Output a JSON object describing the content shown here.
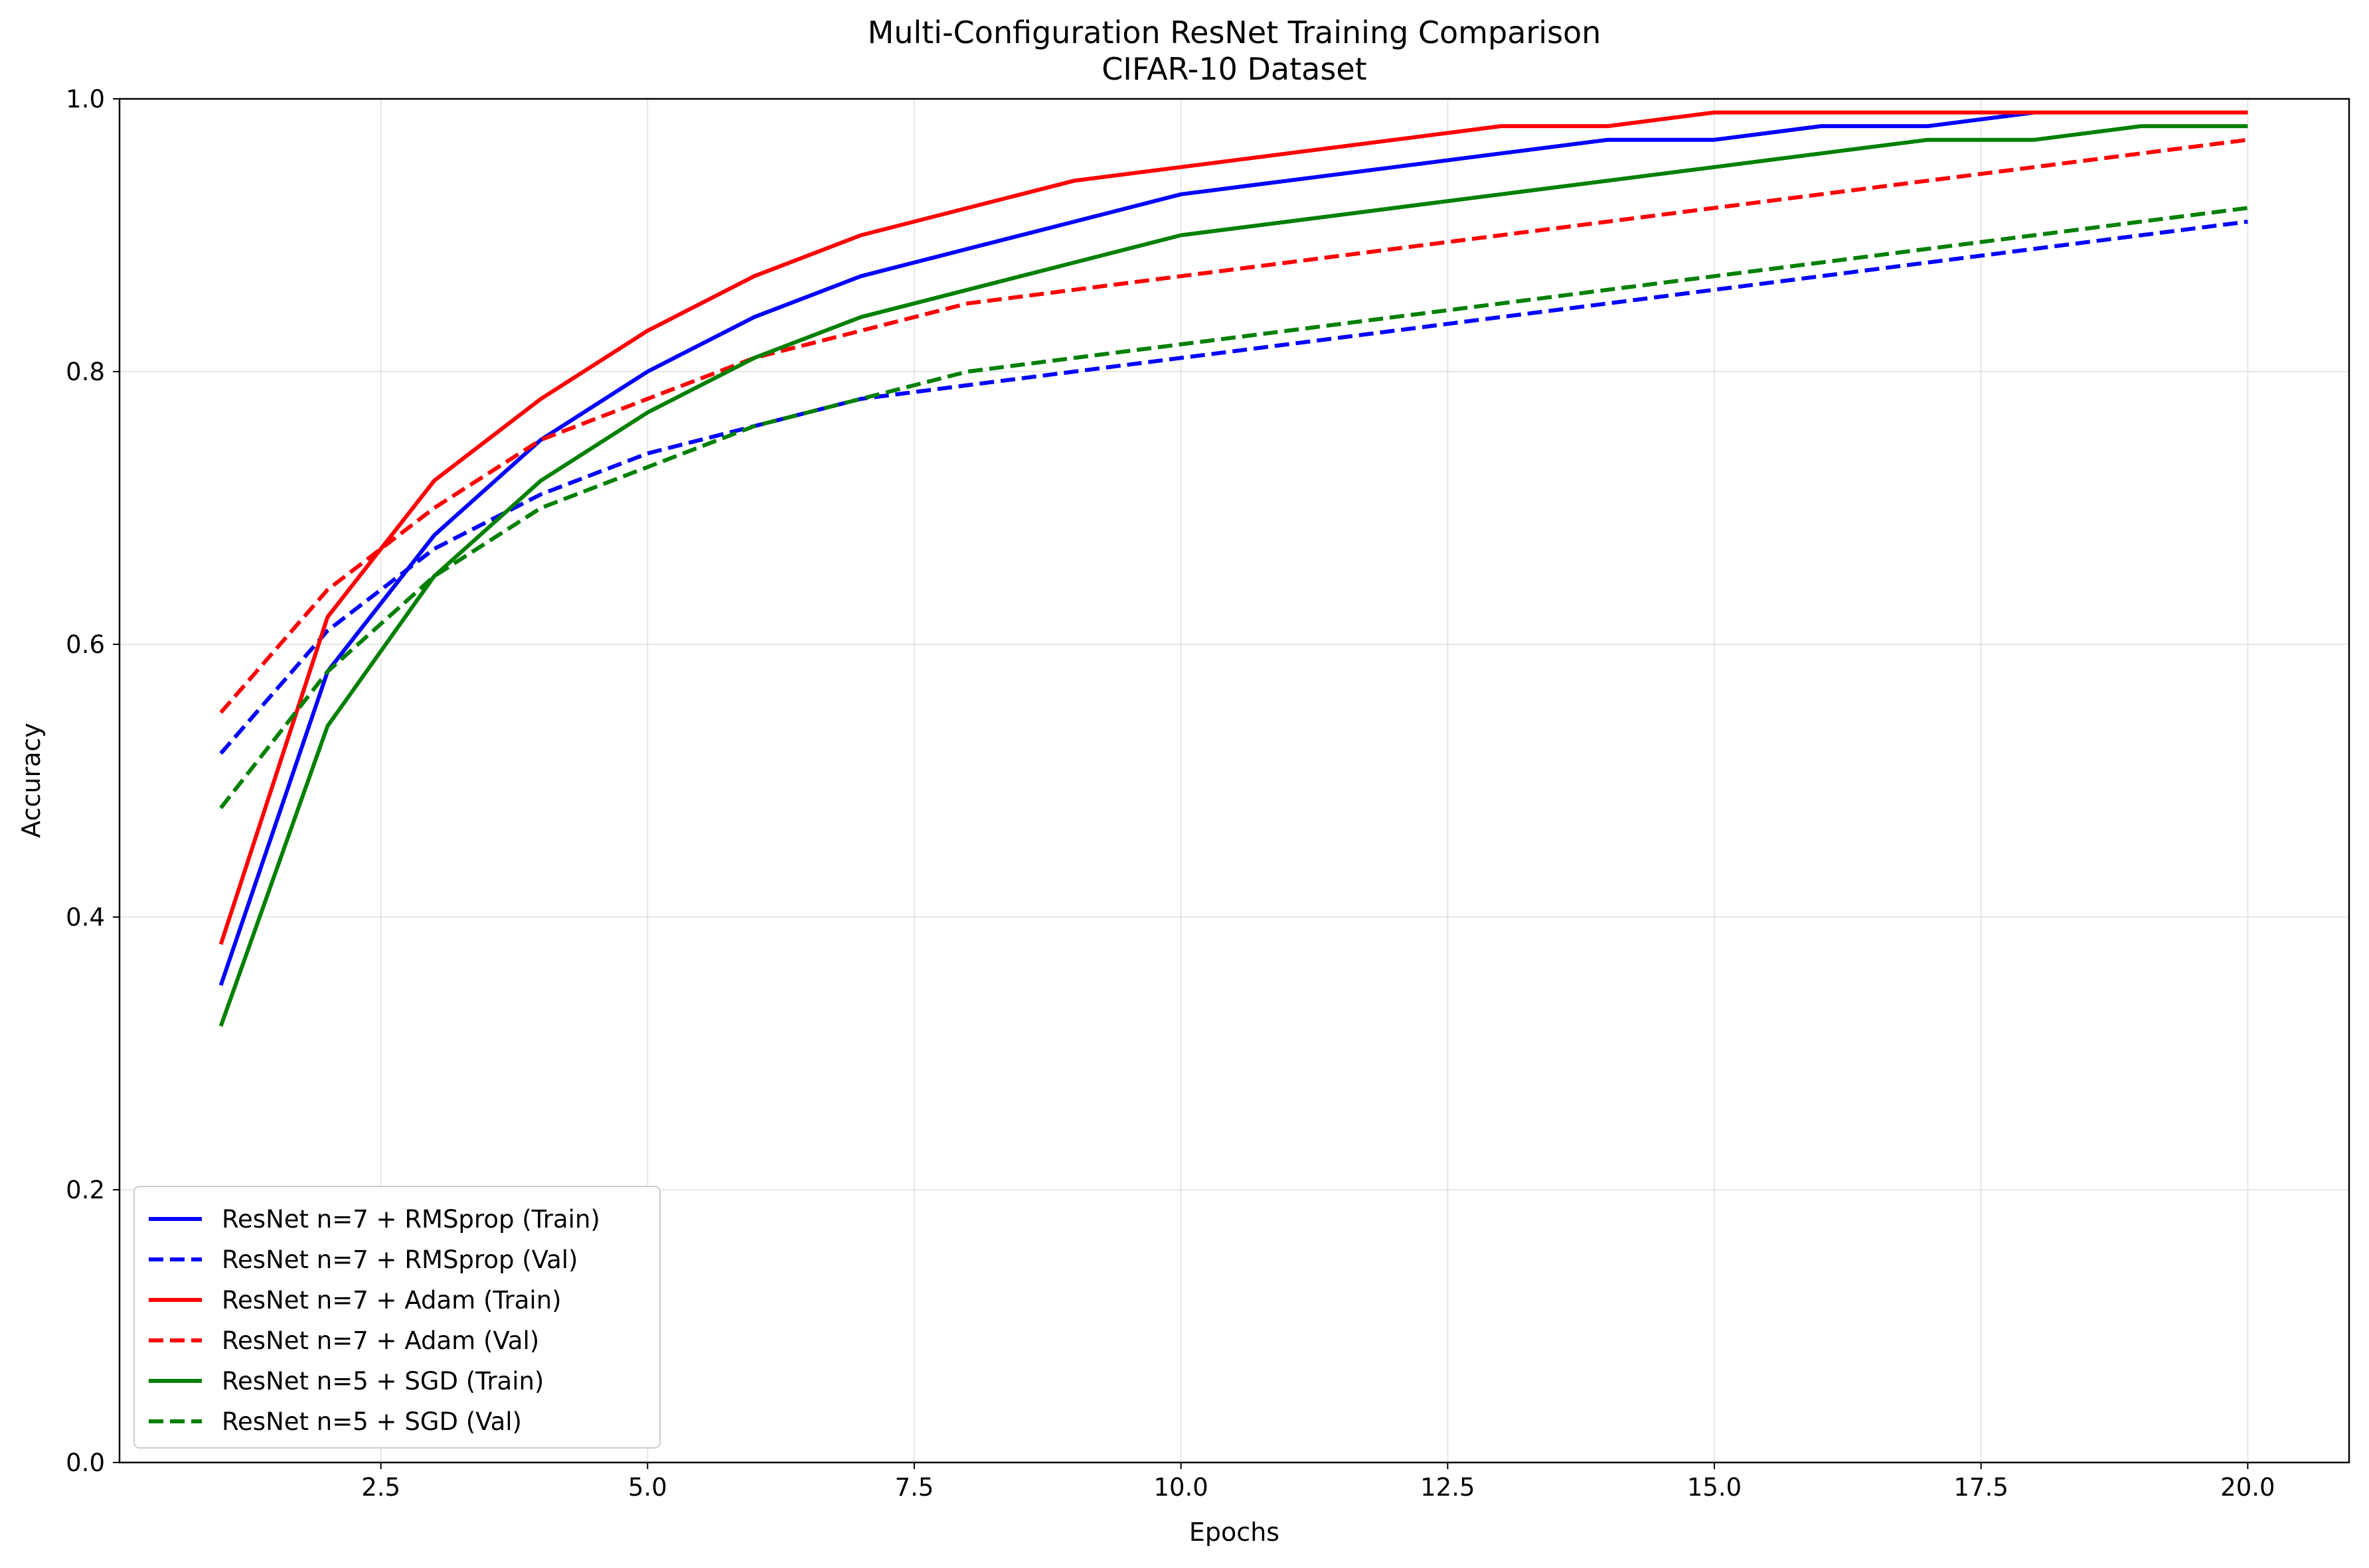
{
  "chart_data": {
    "type": "line",
    "title": "Multi-Configuration ResNet Training Comparison",
    "subtitle": "CIFAR-10 Dataset",
    "xlabel": "Epochs",
    "ylabel": "Accuracy",
    "xlim": [
      0.05,
      20.95
    ],
    "ylim": [
      0.0,
      1.0
    ],
    "xticks": [
      2.5,
      5.0,
      7.5,
      10.0,
      12.5,
      15.0,
      17.5,
      20.0
    ],
    "xtick_labels": [
      "2.5",
      "5.0",
      "7.5",
      "10.0",
      "12.5",
      "15.0",
      "17.5",
      "20.0"
    ],
    "yticks": [
      0.0,
      0.2,
      0.4,
      0.6,
      0.8,
      1.0
    ],
    "ytick_labels": [
      "0.0",
      "0.2",
      "0.4",
      "0.6",
      "0.8",
      "1.0"
    ],
    "grid": true,
    "legend_position": "lower-left",
    "x": [
      1,
      2,
      3,
      4,
      5,
      6,
      7,
      8,
      9,
      10,
      11,
      12,
      13,
      14,
      15,
      16,
      17,
      18,
      19,
      20
    ],
    "series": [
      {
        "name": "ResNet n=7 + RMSprop (Train)",
        "color": "#0000ff",
        "style": "solid",
        "values": [
          0.35,
          0.58,
          0.68,
          0.75,
          0.8,
          0.84,
          0.87,
          0.89,
          0.91,
          0.93,
          0.94,
          0.95,
          0.96,
          0.97,
          0.97,
          0.98,
          0.98,
          0.99,
          0.99,
          0.99
        ]
      },
      {
        "name": "ResNet n=7 + RMSprop (Val)",
        "color": "#0000ff",
        "style": "dashed",
        "values": [
          0.52,
          0.61,
          0.67,
          0.71,
          0.74,
          0.76,
          0.78,
          0.79,
          0.8,
          0.81,
          0.82,
          0.83,
          0.84,
          0.85,
          0.86,
          0.87,
          0.88,
          0.89,
          0.9,
          0.91
        ]
      },
      {
        "name": "ResNet n=7 + Adam (Train)",
        "color": "#ff0000",
        "style": "solid",
        "values": [
          0.38,
          0.62,
          0.72,
          0.78,
          0.83,
          0.87,
          0.9,
          0.92,
          0.94,
          0.95,
          0.96,
          0.97,
          0.98,
          0.98,
          0.99,
          0.99,
          0.99,
          0.99,
          0.99,
          0.99
        ]
      },
      {
        "name": "ResNet n=7 + Adam (Val)",
        "color": "#ff0000",
        "style": "dashed",
        "values": [
          0.55,
          0.64,
          0.7,
          0.75,
          0.78,
          0.81,
          0.83,
          0.85,
          0.86,
          0.87,
          0.88,
          0.89,
          0.9,
          0.91,
          0.92,
          0.93,
          0.94,
          0.95,
          0.96,
          0.97
        ]
      },
      {
        "name": "ResNet n=5 + SGD (Train)",
        "color": "#008000",
        "style": "solid",
        "values": [
          0.32,
          0.54,
          0.65,
          0.72,
          0.77,
          0.81,
          0.84,
          0.86,
          0.88,
          0.9,
          0.91,
          0.92,
          0.93,
          0.94,
          0.95,
          0.96,
          0.97,
          0.97,
          0.98,
          0.98
        ]
      },
      {
        "name": "ResNet n=5 + SGD (Val)",
        "color": "#008000",
        "style": "dashed",
        "values": [
          0.48,
          0.58,
          0.65,
          0.7,
          0.73,
          0.76,
          0.78,
          0.8,
          0.81,
          0.82,
          0.83,
          0.84,
          0.85,
          0.86,
          0.87,
          0.88,
          0.89,
          0.9,
          0.91,
          0.92
        ]
      }
    ]
  }
}
